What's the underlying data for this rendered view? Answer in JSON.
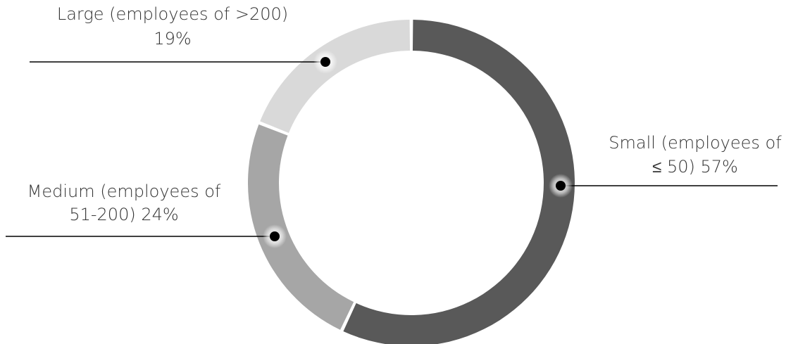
{
  "chart_data": {
    "type": "pie",
    "variant": "donut",
    "title": "",
    "grid": false,
    "legend": "none",
    "start_angle_deg": 0,
    "direction": "clockwise",
    "slices": [
      {
        "key": "small",
        "value": 57,
        "color": "#595959",
        "label_line1": "Small (employees of",
        "label_line2": "≤ 50) 57%"
      },
      {
        "key": "medium",
        "value": 24,
        "color": "#a6a6a6",
        "label_line1": "Medium (employees of",
        "label_line2": "51-200) 24%"
      },
      {
        "key": "large",
        "value": 19,
        "color": "#d9d9d9",
        "label_line1": "Large (employees of >200)",
        "label_line2": "19%"
      }
    ]
  }
}
